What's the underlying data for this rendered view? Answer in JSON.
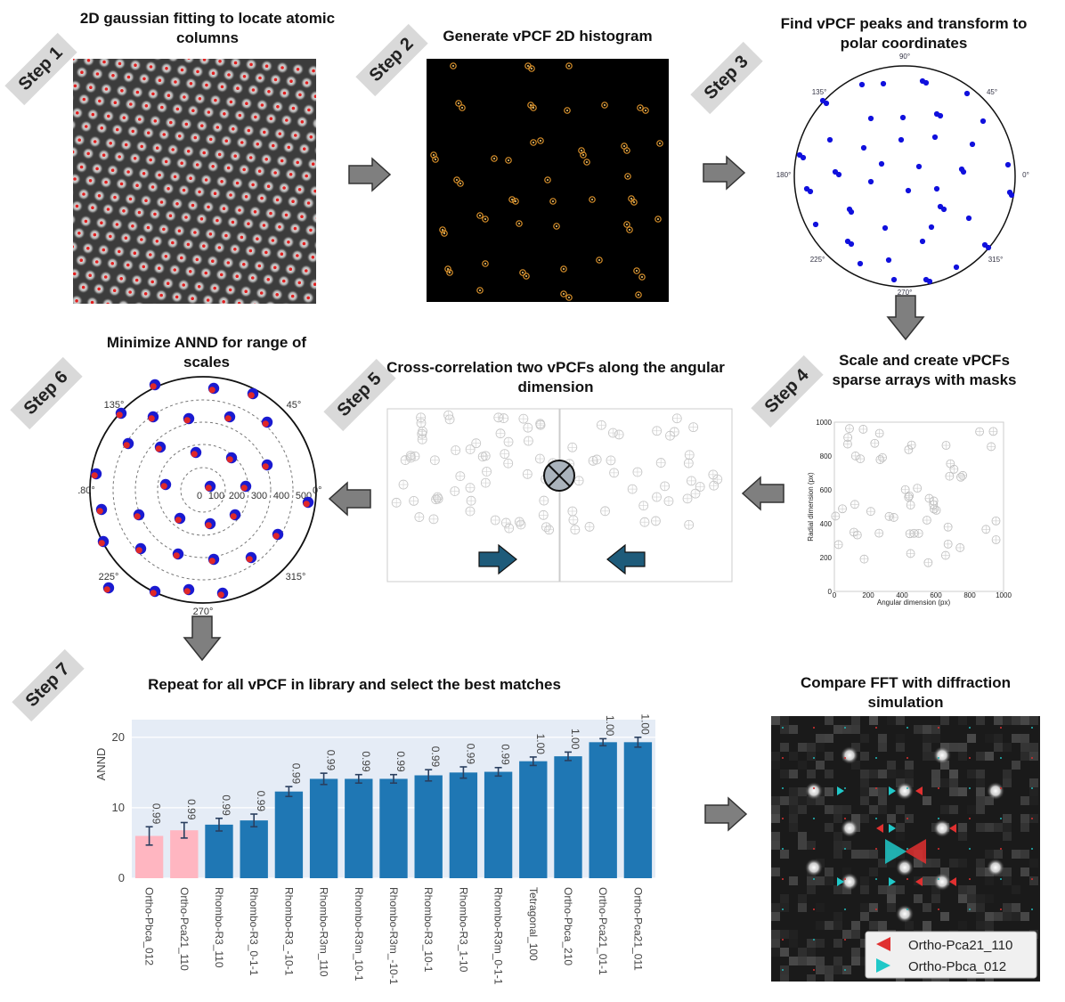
{
  "steps": {
    "s1": {
      "badge": "Step 1",
      "title": "2D gaussian fitting to locate atomic columns"
    },
    "s2": {
      "badge": "Step 2",
      "title": "Generate vPCF 2D histogram"
    },
    "s3": {
      "badge": "Step 3",
      "title": "Find vPCF peaks and transform to polar coordinates"
    },
    "s4": {
      "badge": "Step 4",
      "title": "Scale and create vPCFs sparse arrays with masks"
    },
    "s5": {
      "badge": "Step 5",
      "title": "Cross-correlation two vPCFs along the angular dimension"
    },
    "s6": {
      "badge": "Step 6",
      "title": "Minimize ANND for range of scales"
    },
    "s7": {
      "badge": "Step 7",
      "title": "Repeat for all vPCF in library and select the best matches"
    },
    "s8": {
      "title": "Compare  FFT with diffraction simulation"
    }
  },
  "polar_labels": {
    "a90": "90°",
    "a135": "135°",
    "a45": "45°",
    "a180": "180°",
    "a0": "0°",
    "a225": "225°",
    "a315": "315°",
    "a270": "270°"
  },
  "step6_radial_ticks": [
    "0",
    "100",
    "200",
    "300",
    "400",
    "500"
  ],
  "step4_plot": {
    "xlabel": "Angular dimension (px)",
    "ylabel": "Radial dimension (px)",
    "xticks": [
      "0",
      "200",
      "400",
      "600",
      "800",
      "1000"
    ],
    "yticks": [
      "0",
      "200",
      "400",
      "600",
      "800",
      "1000"
    ]
  },
  "chart_data": {
    "type": "bar",
    "ylabel": "ANND",
    "ylim": [
      0,
      22.5
    ],
    "yticks": [
      0,
      10,
      20
    ],
    "categories": [
      "Ortho-Pbca_012",
      "Ortho-Pca21_110",
      "Rhombo-R3_110",
      "Rhombo-R3_0-1-1",
      "Rhombo-R3_-10-1",
      "Rhombo-R3m_110",
      "Rhombo-R3m_10-1",
      "Rhombo-R3m_-10-1",
      "Rhombo-R3_10-1",
      "Rhombo-R3_1-10",
      "Rhombo-R3m_0-1-1",
      "Tetragonal_100",
      "Ortho-Pbca_210",
      "Ortho-Pca21_01-1",
      "Ortho-Pca21_011"
    ],
    "values": [
      6.0,
      6.8,
      7.6,
      8.2,
      12.3,
      14.1,
      14.1,
      14.1,
      14.6,
      15.0,
      15.1,
      16.6,
      17.3,
      19.3,
      19.3
    ],
    "errors": [
      1.3,
      1.1,
      0.9,
      0.9,
      0.7,
      0.8,
      0.6,
      0.6,
      0.8,
      0.8,
      0.6,
      0.6,
      0.6,
      0.5,
      0.7
    ],
    "labels": [
      "0.99",
      "0.99",
      "0.99",
      "0.99",
      "0.99",
      "0.99",
      "0.99",
      "0.99",
      "0.99",
      "0.99",
      "0.99",
      "1.00",
      "1.00",
      "1.00",
      "1.00"
    ],
    "colors": [
      "#ffb6c1",
      "#ffb6c1",
      "#1f77b4",
      "#1f77b4",
      "#1f77b4",
      "#1f77b4",
      "#1f77b4",
      "#1f77b4",
      "#1f77b4",
      "#1f77b4",
      "#1f77b4",
      "#1f77b4",
      "#1f77b4",
      "#1f77b4",
      "#1f77b4"
    ]
  },
  "fft_legend": [
    {
      "label": "Ortho-Pca21_110",
      "color": "#e03030",
      "icon": "triangle-left-icon"
    },
    {
      "label": "Ortho-Pbca_012",
      "color": "#20c8c8",
      "icon": "triangle-right-icon"
    }
  ]
}
